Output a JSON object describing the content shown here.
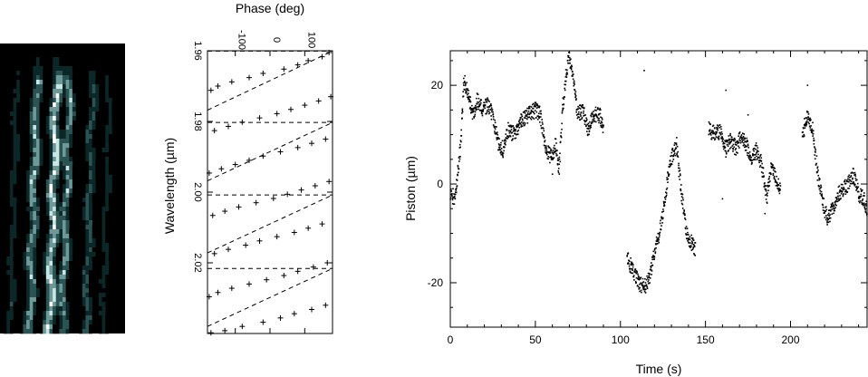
{
  "chart_data": [
    {
      "type": "heatmap",
      "panel": "interferogram",
      "colormap": [
        "#000000",
        "#0b2727",
        "#2b5353",
        "#6e9999",
        "#c8e6e6",
        "#ffffff"
      ],
      "rows": 64,
      "cols": 38,
      "stripes": [
        {
          "col": 5,
          "width": 1.5,
          "intensity": 0.35
        },
        {
          "col": 11,
          "width": 2.5,
          "intensity": 0.75
        },
        {
          "col": 17,
          "width": 2.5,
          "intensity": 0.95
        },
        {
          "col": 21,
          "width": 2.0,
          "intensity": 0.7
        },
        {
          "col": 28,
          "width": 2.0,
          "intensity": 0.5
        },
        {
          "col": 33,
          "width": 1.5,
          "intensity": 0.3
        }
      ]
    },
    {
      "type": "scatter",
      "panel": "phase-vs-wavelength",
      "title": "",
      "xlabel": "Phase (deg)",
      "ylabel": "Wavelength (µm)",
      "xlim": [
        -180,
        180
      ],
      "ylim": [
        1.96,
        2.04
      ],
      "y_reversed": true,
      "xticks": [
        -100,
        0,
        100
      ],
      "yticks": [
        1.96,
        1.98,
        2.0,
        2.02
      ],
      "ytick_labels": [
        "1.96",
        "1.98",
        "2.00",
        "2.02"
      ],
      "marker": "+",
      "fit_segments": [
        {
          "x": [
            -180,
            180
          ],
          "y": [
            1.9768,
            1.9601
          ]
        },
        {
          "x": [
            -180,
            180
          ],
          "y": [
            1.9968,
            1.9803
          ]
        },
        {
          "x": [
            -180,
            180
          ],
          "y": [
            2.0172,
            2.0008
          ]
        },
        {
          "x": [
            -180,
            180
          ],
          "y": [
            2.038,
            2.0216
          ]
        }
      ],
      "points": [
        [
          170,
          1.9605
        ],
        [
          150,
          1.9617
        ],
        [
          110,
          1.9628
        ],
        [
          80,
          1.964
        ],
        [
          40,
          1.9652
        ],
        [
          -20,
          1.9664
        ],
        [
          -60,
          1.9676
        ],
        [
          -110,
          1.9688
        ],
        [
          -150,
          1.97
        ],
        [
          -170,
          1.9712
        ],
        [
          175,
          1.973
        ],
        [
          140,
          1.9742
        ],
        [
          100,
          1.9754
        ],
        [
          60,
          1.9766
        ],
        [
          20,
          1.9778
        ],
        [
          -30,
          1.979
        ],
        [
          -80,
          1.9802
        ],
        [
          -120,
          1.9814
        ],
        [
          -160,
          1.9826
        ],
        [
          160,
          1.985
        ],
        [
          120,
          1.9862
        ],
        [
          80,
          1.9874
        ],
        [
          30,
          1.9886
        ],
        [
          -20,
          1.9898
        ],
        [
          -60,
          1.991
        ],
        [
          -100,
          1.9922
        ],
        [
          -140,
          1.9934
        ],
        [
          -175,
          1.9946
        ],
        [
          170,
          1.997
        ],
        [
          130,
          1.9982
        ],
        [
          90,
          1.9994
        ],
        [
          50,
          2.0006
        ],
        [
          10,
          2.0018
        ],
        [
          -40,
          2.003
        ],
        [
          -90,
          2.0042
        ],
        [
          -130,
          2.0054
        ],
        [
          -165,
          2.0066
        ],
        [
          150,
          2.009
        ],
        [
          110,
          2.0102
        ],
        [
          70,
          2.0114
        ],
        [
          20,
          2.0126
        ],
        [
          -30,
          2.0138
        ],
        [
          -70,
          2.015
        ],
        [
          -120,
          2.0162
        ],
        [
          -160,
          2.0174
        ],
        [
          165,
          2.02
        ],
        [
          125,
          2.0212
        ],
        [
          80,
          2.0224
        ],
        [
          40,
          2.0236
        ],
        [
          -10,
          2.0248
        ],
        [
          -60,
          2.026
        ],
        [
          -110,
          2.0272
        ],
        [
          -150,
          2.0284
        ],
        [
          -175,
          2.0296
        ],
        [
          160,
          2.032
        ],
        [
          120,
          2.0332
        ],
        [
          70,
          2.0344
        ],
        [
          30,
          2.0356
        ],
        [
          -20,
          2.0368
        ],
        [
          -80,
          2.038
        ],
        [
          -130,
          2.0392
        ],
        [
          -170,
          2.0398
        ]
      ]
    },
    {
      "type": "scatter",
      "panel": "piston-vs-time",
      "title": "",
      "xlabel": "Time (s)",
      "ylabel": "Piston (µm)",
      "xlim": [
        0,
        245
      ],
      "ylim": [
        -29,
        27
      ],
      "xticks": [
        0,
        50,
        100,
        150,
        200
      ],
      "yticks": [
        -20,
        0,
        20
      ],
      "marker": "dot",
      "points_per_second": 4,
      "gaps": [
        [
          90,
          104
        ],
        [
          144,
          152
        ],
        [
          194,
          207
        ]
      ],
      "knots": [
        [
          0,
          -2
        ],
        [
          3,
          -3
        ],
        [
          6,
          8
        ],
        [
          8,
          21
        ],
        [
          10,
          19
        ],
        [
          13,
          14
        ],
        [
          16,
          17
        ],
        [
          19,
          15
        ],
        [
          22,
          16
        ],
        [
          25,
          14
        ],
        [
          28,
          8
        ],
        [
          31,
          7
        ],
        [
          34,
          11
        ],
        [
          38,
          10
        ],
        [
          42,
          13
        ],
        [
          50,
          15
        ],
        [
          53,
          14
        ],
        [
          56,
          7
        ],
        [
          60,
          5
        ],
        [
          62,
          8
        ],
        [
          64,
          3
        ],
        [
          66,
          15
        ],
        [
          68,
          22
        ],
        [
          70,
          26
        ],
        [
          72,
          22
        ],
        [
          75,
          14
        ],
        [
          78,
          15
        ],
        [
          81,
          11
        ],
        [
          84,
          14
        ],
        [
          88,
          14
        ],
        [
          104,
          -15
        ],
        [
          108,
          -18
        ],
        [
          111,
          -20
        ],
        [
          114,
          -21
        ],
        [
          117,
          -19
        ],
        [
          120,
          -14
        ],
        [
          123,
          -10
        ],
        [
          126,
          -4
        ],
        [
          128,
          2
        ],
        [
          130,
          5
        ],
        [
          133,
          8
        ],
        [
          136,
          -2
        ],
        [
          139,
          -10
        ],
        [
          142,
          -12
        ],
        [
          144,
          -13
        ],
        [
          152,
          11
        ],
        [
          156,
          10
        ],
        [
          159,
          11
        ],
        [
          162,
          7
        ],
        [
          165,
          9
        ],
        [
          168,
          7
        ],
        [
          171,
          10
        ],
        [
          174,
          8
        ],
        [
          177,
          5
        ],
        [
          180,
          7
        ],
        [
          183,
          4
        ],
        [
          186,
          -3
        ],
        [
          189,
          4
        ],
        [
          192,
          0
        ],
        [
          194,
          -1
        ],
        [
          207,
          10
        ],
        [
          210,
          14
        ],
        [
          213,
          11
        ],
        [
          216,
          2
        ],
        [
          219,
          -4
        ],
        [
          222,
          -7
        ],
        [
          225,
          -5
        ],
        [
          228,
          -2
        ],
        [
          231,
          -1
        ],
        [
          234,
          0
        ],
        [
          237,
          2
        ],
        [
          240,
          -2
        ],
        [
          243,
          -3
        ],
        [
          245,
          -5
        ]
      ],
      "outliers": [
        [
          114,
          23
        ],
        [
          162,
          19
        ],
        [
          175,
          14
        ],
        [
          210,
          20
        ],
        [
          160,
          -3
        ],
        [
          185,
          -6
        ],
        [
          60,
          2
        ]
      ]
    }
  ]
}
